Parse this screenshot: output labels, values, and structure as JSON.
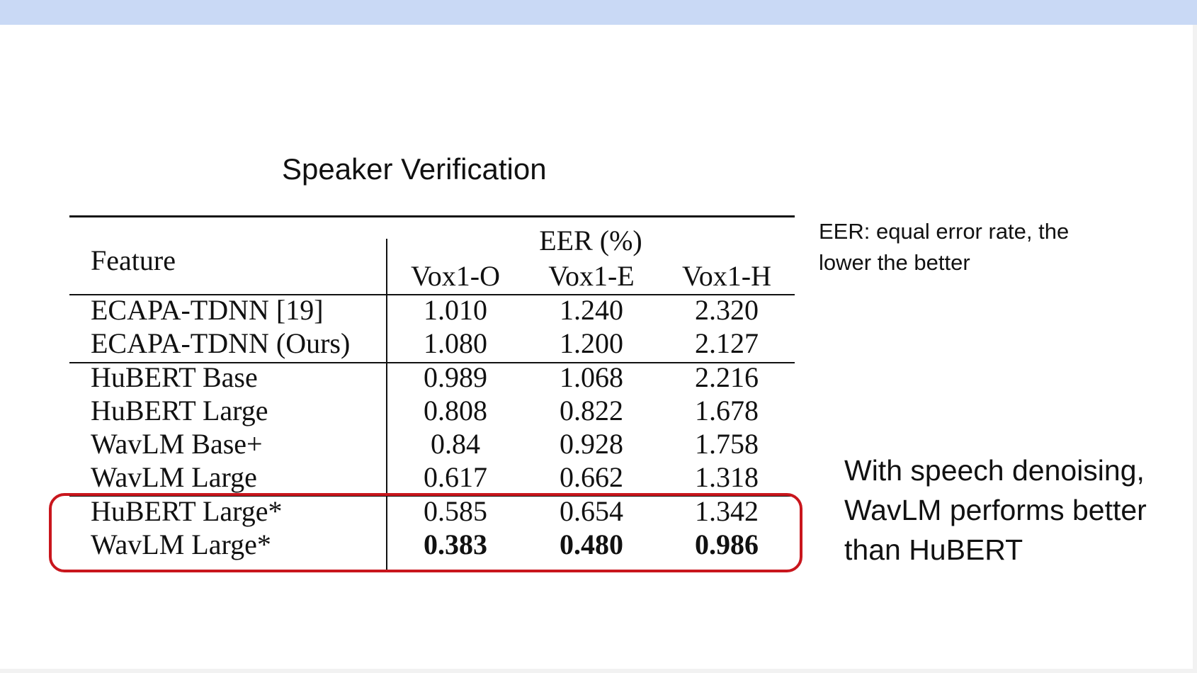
{
  "slide": {
    "title": "Speaker Verification",
    "eer_note_lines": [
      "EER: equal error rate, the",
      "lower the better"
    ],
    "denoise_note_lines": [
      "With speech denoising,",
      "WavLM performs better",
      "than HuBERT"
    ]
  },
  "table": {
    "feature_header": "Feature",
    "metric_header": "EER (%)",
    "columns": [
      "Vox1-O",
      "Vox1-E",
      "Vox1-H"
    ],
    "rows": [
      {
        "feature": "ECAPA-TDNN [19]",
        "values": [
          "1.010",
          "1.240",
          "2.320"
        ]
      },
      {
        "feature": "ECAPA-TDNN (Ours)",
        "values": [
          "1.080",
          "1.200",
          "2.127"
        ]
      },
      {
        "feature": "HuBERT Base",
        "values": [
          "0.989",
          "1.068",
          "2.216"
        ]
      },
      {
        "feature": "HuBERT Large",
        "values": [
          "0.808",
          "0.822",
          "1.678"
        ]
      },
      {
        "feature": "WavLM Base+",
        "values": [
          "0.84",
          "0.928",
          "1.758"
        ]
      },
      {
        "feature": "WavLM Large",
        "values": [
          "0.617",
          "0.662",
          "1.318"
        ]
      },
      {
        "feature": "HuBERT Large*",
        "values": [
          "0.585",
          "0.654",
          "1.342"
        ]
      },
      {
        "feature": "WavLM Large*",
        "values": [
          "0.383",
          "0.480",
          "0.986"
        ]
      }
    ]
  },
  "colors": {
    "top_band": "#c9d9f5",
    "highlight_border": "#c9161d"
  }
}
